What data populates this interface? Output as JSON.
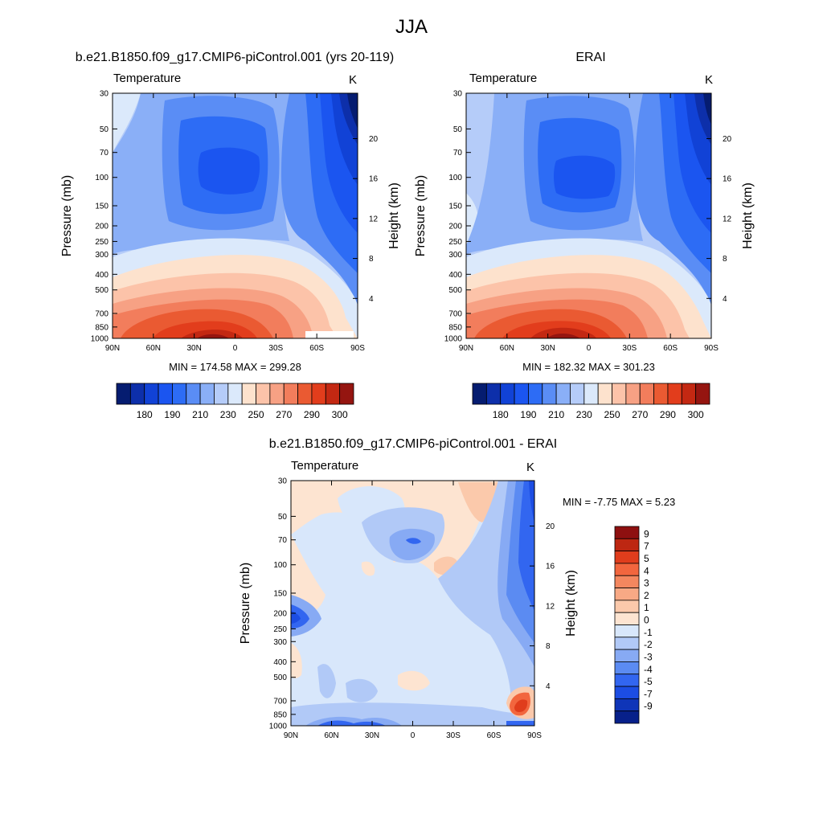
{
  "figure": {
    "title": "JJA"
  },
  "chart_data": [
    {
      "type": "heatmap",
      "title": "b.e21.B1850.f09_g17.CMIP6-piControl.001 (yrs 20-119)",
      "variable": "Temperature",
      "units": "K",
      "ylabel": "Pressure (mb)",
      "y2label": "Height (km)",
      "x_ticks": [
        "90N",
        "60N",
        "30N",
        "0",
        "30S",
        "60S",
        "90S"
      ],
      "x_values": [
        90,
        60,
        30,
        0,
        -30,
        -60,
        -90
      ],
      "xlim": [
        90,
        -90
      ],
      "y_ticks": [
        30,
        50,
        70,
        100,
        150,
        200,
        250,
        300,
        400,
        500,
        700,
        850,
        1000
      ],
      "ylim": [
        30,
        1000
      ],
      "yscale": "log",
      "y2_ticks": [
        4,
        8,
        12,
        16,
        20
      ],
      "min_max_label": "MIN = 174.58  MAX = 299.28",
      "min": 174.58,
      "max": 299.28,
      "colorbar": {
        "orientation": "horizontal",
        "levels": [
          175,
          180,
          185,
          190,
          200,
          210,
          220,
          230,
          240,
          250,
          260,
          270,
          280,
          290,
          295,
          300
        ],
        "labels": [
          "180",
          "190",
          "210",
          "230",
          "250",
          "270",
          "290",
          "300"
        ],
        "colors": [
          "#051c70",
          "#0d2faa",
          "#1142d6",
          "#1b55f0",
          "#2d6cf5",
          "#5a8df5",
          "#8aaff7",
          "#b5ccf9",
          "#dbe9fb",
          "#fde2cd",
          "#fcc3a9",
          "#f7a184",
          "#f27d5c",
          "#ea5a32",
          "#e23d1c",
          "#c32812",
          "#951510"
        ]
      }
    },
    {
      "type": "heatmap",
      "title": "ERAI",
      "variable": "Temperature",
      "units": "K",
      "ylabel": "Pressure (mb)",
      "y2label": "Height (km)",
      "x_ticks": [
        "90N",
        "60N",
        "30N",
        "0",
        "30S",
        "60S",
        "90S"
      ],
      "x_values": [
        90,
        60,
        30,
        0,
        -30,
        -60,
        -90
      ],
      "xlim": [
        90,
        -90
      ],
      "y_ticks": [
        30,
        50,
        70,
        100,
        150,
        200,
        250,
        300,
        400,
        500,
        700,
        850,
        1000
      ],
      "ylim": [
        30,
        1000
      ],
      "yscale": "log",
      "y2_ticks": [
        4,
        8,
        12,
        16,
        20
      ],
      "min_max_label": "MIN = 182.32  MAX = 301.23",
      "min": 182.32,
      "max": 301.23,
      "colorbar": {
        "orientation": "horizontal",
        "levels": [
          175,
          180,
          185,
          190,
          200,
          210,
          220,
          230,
          240,
          250,
          260,
          270,
          280,
          290,
          295,
          300
        ],
        "labels": [
          "180",
          "190",
          "210",
          "230",
          "250",
          "270",
          "290",
          "300"
        ],
        "colors": [
          "#051c70",
          "#0d2faa",
          "#1142d6",
          "#1b55f0",
          "#2d6cf5",
          "#5a8df5",
          "#8aaff7",
          "#b5ccf9",
          "#dbe9fb",
          "#fde2cd",
          "#fcc3a9",
          "#f7a184",
          "#f27d5c",
          "#ea5a32",
          "#e23d1c",
          "#c32812",
          "#951510"
        ]
      }
    },
    {
      "type": "heatmap",
      "title": "b.e21.B1850.f09_g17.CMIP6-piControl.001 - ERAI",
      "variable": "Temperature",
      "units": "K",
      "ylabel": "Pressure (mb)",
      "y2label": "Height (km)",
      "x_ticks": [
        "90N",
        "60N",
        "30N",
        "0",
        "30S",
        "60S",
        "90S"
      ],
      "x_values": [
        90,
        60,
        30,
        0,
        -30,
        -60,
        -90
      ],
      "xlim": [
        90,
        -90
      ],
      "y_ticks": [
        30,
        50,
        70,
        100,
        150,
        200,
        250,
        300,
        400,
        500,
        700,
        850,
        1000
      ],
      "ylim": [
        30,
        1000
      ],
      "yscale": "log",
      "y2_ticks": [
        4,
        8,
        12,
        16,
        20
      ],
      "min_max_label": "MIN =  -7.75  MAX =   5.23",
      "min": -7.75,
      "max": 5.23,
      "colorbar": {
        "orientation": "vertical",
        "levels": [
          9,
          7,
          5,
          4,
          3,
          2,
          1,
          0,
          -1,
          -2,
          -3,
          -4,
          -5,
          -7,
          -9
        ],
        "labels": [
          "9",
          "7",
          "5",
          "4",
          "3",
          "2",
          "1",
          "0",
          "-1",
          "-2",
          "-3",
          "-4",
          "-5",
          "-7",
          "-9"
        ],
        "colors": [
          "#8e1010",
          "#bd2712",
          "#e03d1c",
          "#f2663e",
          "#f4875f",
          "#f8a985",
          "#fbc9ab",
          "#fde4d1",
          "#d8e7fb",
          "#b1c9f7",
          "#87aaf4",
          "#5b8bf2",
          "#3266f0",
          "#1c4de3",
          "#0f35b8",
          "#07208a"
        ]
      }
    }
  ]
}
